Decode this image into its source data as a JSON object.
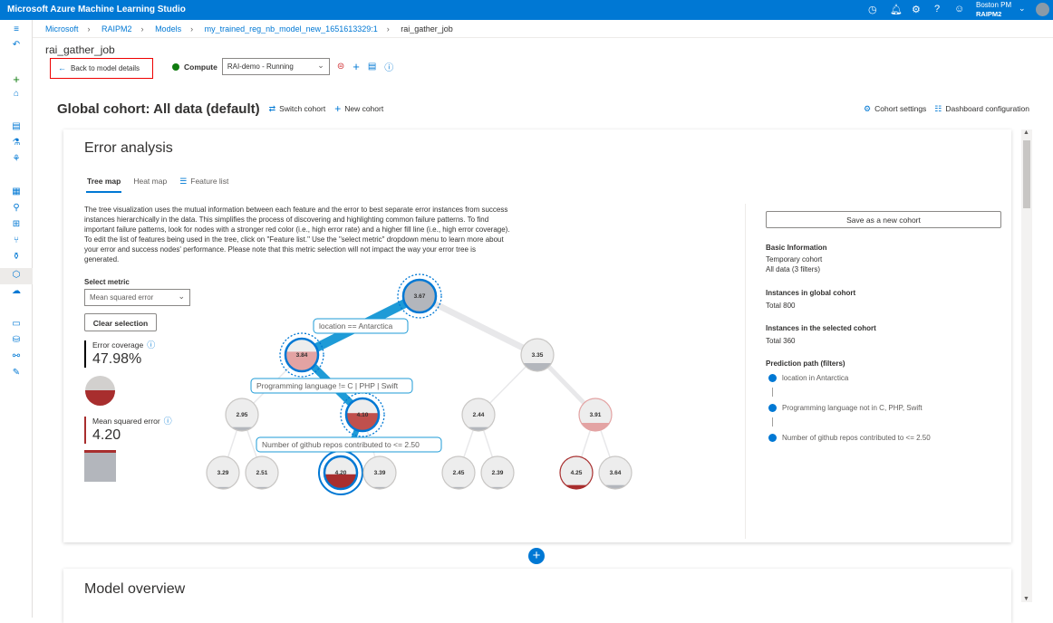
{
  "app_title": "Microsoft Azure Machine Learning Studio",
  "topbar": {
    "icons": [
      "clock-icon",
      "bell-icon",
      "gear-icon",
      "help-icon",
      "feedback-smiley-icon"
    ],
    "user_name": "Boston PM",
    "workspace": "RAIPM2"
  },
  "breadcrumb": [
    "Microsoft",
    "RAIPM2",
    "Models",
    "my_trained_reg_nb_model_new_1651613329:1",
    "rai_gather_job"
  ],
  "page_title": "rai_gather_job",
  "back_link": "Back to model details",
  "compute": {
    "label": "Compute",
    "value": "RAI-demo - Running",
    "status_color": "#107c10"
  },
  "cohort": {
    "title": "Global cohort: All data (default)",
    "switch": "Switch cohort",
    "new": "New cohort",
    "settings": "Cohort settings",
    "dashboard_config": "Dashboard configuration"
  },
  "error_analysis": {
    "title": "Error analysis",
    "tabs": [
      "Tree map",
      "Heat map",
      "Feature list"
    ],
    "active_tab": "Tree map",
    "description": "The tree visualization uses the mutual information between each feature and the error to best separate error instances from success instances hierarchically in the data. This simplifies the process of discovering and highlighting common failure patterns. To find important failure patterns, look for nodes with a stronger red color (i.e., high error rate) and a higher fill line (i.e., high error coverage). To edit the list of features being used in the tree, click on \"Feature list.\" Use the \"select metric\" dropdown menu to learn more about your error and success nodes' performance. Please note that this metric selection will not impact the way your error tree is generated.",
    "select_metric_label": "Select metric",
    "select_metric_value": "Mean squared error",
    "clear_selection": "Clear selection",
    "error_coverage_label": "Error coverage",
    "error_coverage_value": "47.98%",
    "metric_label": "Mean squared error",
    "metric_value": "4.20",
    "conditions": [
      "location == Antarctica",
      "Programming language != C | PHP | Swift",
      "Number of github repos contributed to <= 2.50"
    ],
    "nodes": [
      {
        "id": "root",
        "value": "3.67",
        "fill": 1.0,
        "color": "#b3b6bc",
        "selected": true
      },
      {
        "id": "l",
        "value": "3.84",
        "fill": 0.6,
        "color": "#e3a3a3",
        "selected": true
      },
      {
        "id": "r",
        "value": "3.35",
        "fill": 0.25,
        "color": "#b3b6bc"
      },
      {
        "id": "ll",
        "value": "2.95",
        "fill": 0.12,
        "color": "#b3b6bc"
      },
      {
        "id": "lr",
        "value": "4.10",
        "fill": 0.55,
        "color": "#c0504d",
        "selected": true
      },
      {
        "id": "rl",
        "value": "2.44",
        "fill": 0.12,
        "color": "#b3b6bc"
      },
      {
        "id": "rr",
        "value": "3.91",
        "fill": 0.25,
        "color": "#e3a3a3",
        "border": "#e3a3a3"
      },
      {
        "id": "lll",
        "value": "3.29",
        "fill": 0.06,
        "color": "#b3b6bc"
      },
      {
        "id": "llr",
        "value": "2.51",
        "fill": 0.06,
        "color": "#b3b6bc"
      },
      {
        "id": "lrl",
        "value": "4.20",
        "fill": 0.45,
        "color": "#a82e2e",
        "selected": true,
        "current": true
      },
      {
        "id": "lrr",
        "value": "3.39",
        "fill": 0.06,
        "color": "#b3b6bc"
      },
      {
        "id": "rll",
        "value": "2.45",
        "fill": 0.06,
        "color": "#b3b6bc"
      },
      {
        "id": "rlr",
        "value": "2.39",
        "fill": 0.06,
        "color": "#b3b6bc"
      },
      {
        "id": "rrl",
        "value": "4.25",
        "fill": 0.12,
        "color": "#a82e2e",
        "border": "#a82e2e"
      },
      {
        "id": "rrr",
        "value": "3.64",
        "fill": 0.12,
        "color": "#b3b6bc"
      }
    ],
    "info_panel": {
      "save_button": "Save as a new cohort",
      "basic_info_title": "Basic Information",
      "basic_info_lines": [
        "Temporary cohort",
        "All data (3 filters)"
      ],
      "global_title": "Instances in global cohort",
      "global_value": "Total 800",
      "selected_title": "Instances in the selected cohort",
      "selected_value": "Total 360",
      "path_title": "Prediction path (filters)",
      "path": [
        "location in Antarctica",
        "Programming language not in C, PHP, Swift",
        "Number of github repos contributed to <= 2.50"
      ]
    }
  },
  "model_overview": {
    "title": "Model overview"
  },
  "colors": {
    "accent": "#0078d4",
    "error": "#a82e2e"
  }
}
